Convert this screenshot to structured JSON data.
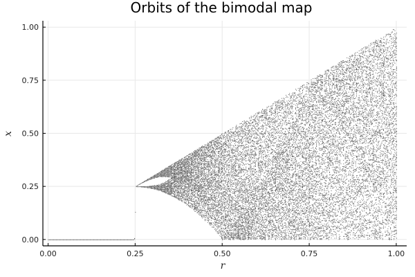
{
  "chart_data": {
    "type": "scatter",
    "title": "Orbits of the bimodal map",
    "xlabel": "r",
    "ylabel": "x",
    "xlim": [
      -0.015,
      1.03
    ],
    "ylim": [
      -0.03,
      1.03
    ],
    "xticks": [
      0.0,
      0.25,
      0.5,
      0.75,
      1.0
    ],
    "xtick_labels": [
      "0.00",
      "0.25",
      "0.50",
      "0.75",
      "1.00"
    ],
    "yticks": [
      0.0,
      0.25,
      0.5,
      0.75,
      1.0
    ],
    "ytick_labels": [
      "0.00",
      "0.25",
      "0.50",
      "0.75",
      "1.00"
    ],
    "grid": true,
    "legend": "none",
    "point_color": "#000000",
    "series": [
      {
        "description_points": [
          {
            "r": 0.0,
            "x": 0.0
          },
          {
            "r": 0.125,
            "x": 0.0
          },
          {
            "r": 0.25,
            "x": 0.25
          },
          {
            "r": 0.375,
            "x": 0.333
          },
          {
            "r": 0.44,
            "x": 0.43
          },
          {
            "r": 0.5,
            "x": 0.5
          },
          {
            "r": 0.75,
            "x": 0.75
          },
          {
            "r": 0.8,
            "x": 0.8
          },
          {
            "r": 1.0,
            "x": 1.0
          }
        ]
      }
    ]
  }
}
